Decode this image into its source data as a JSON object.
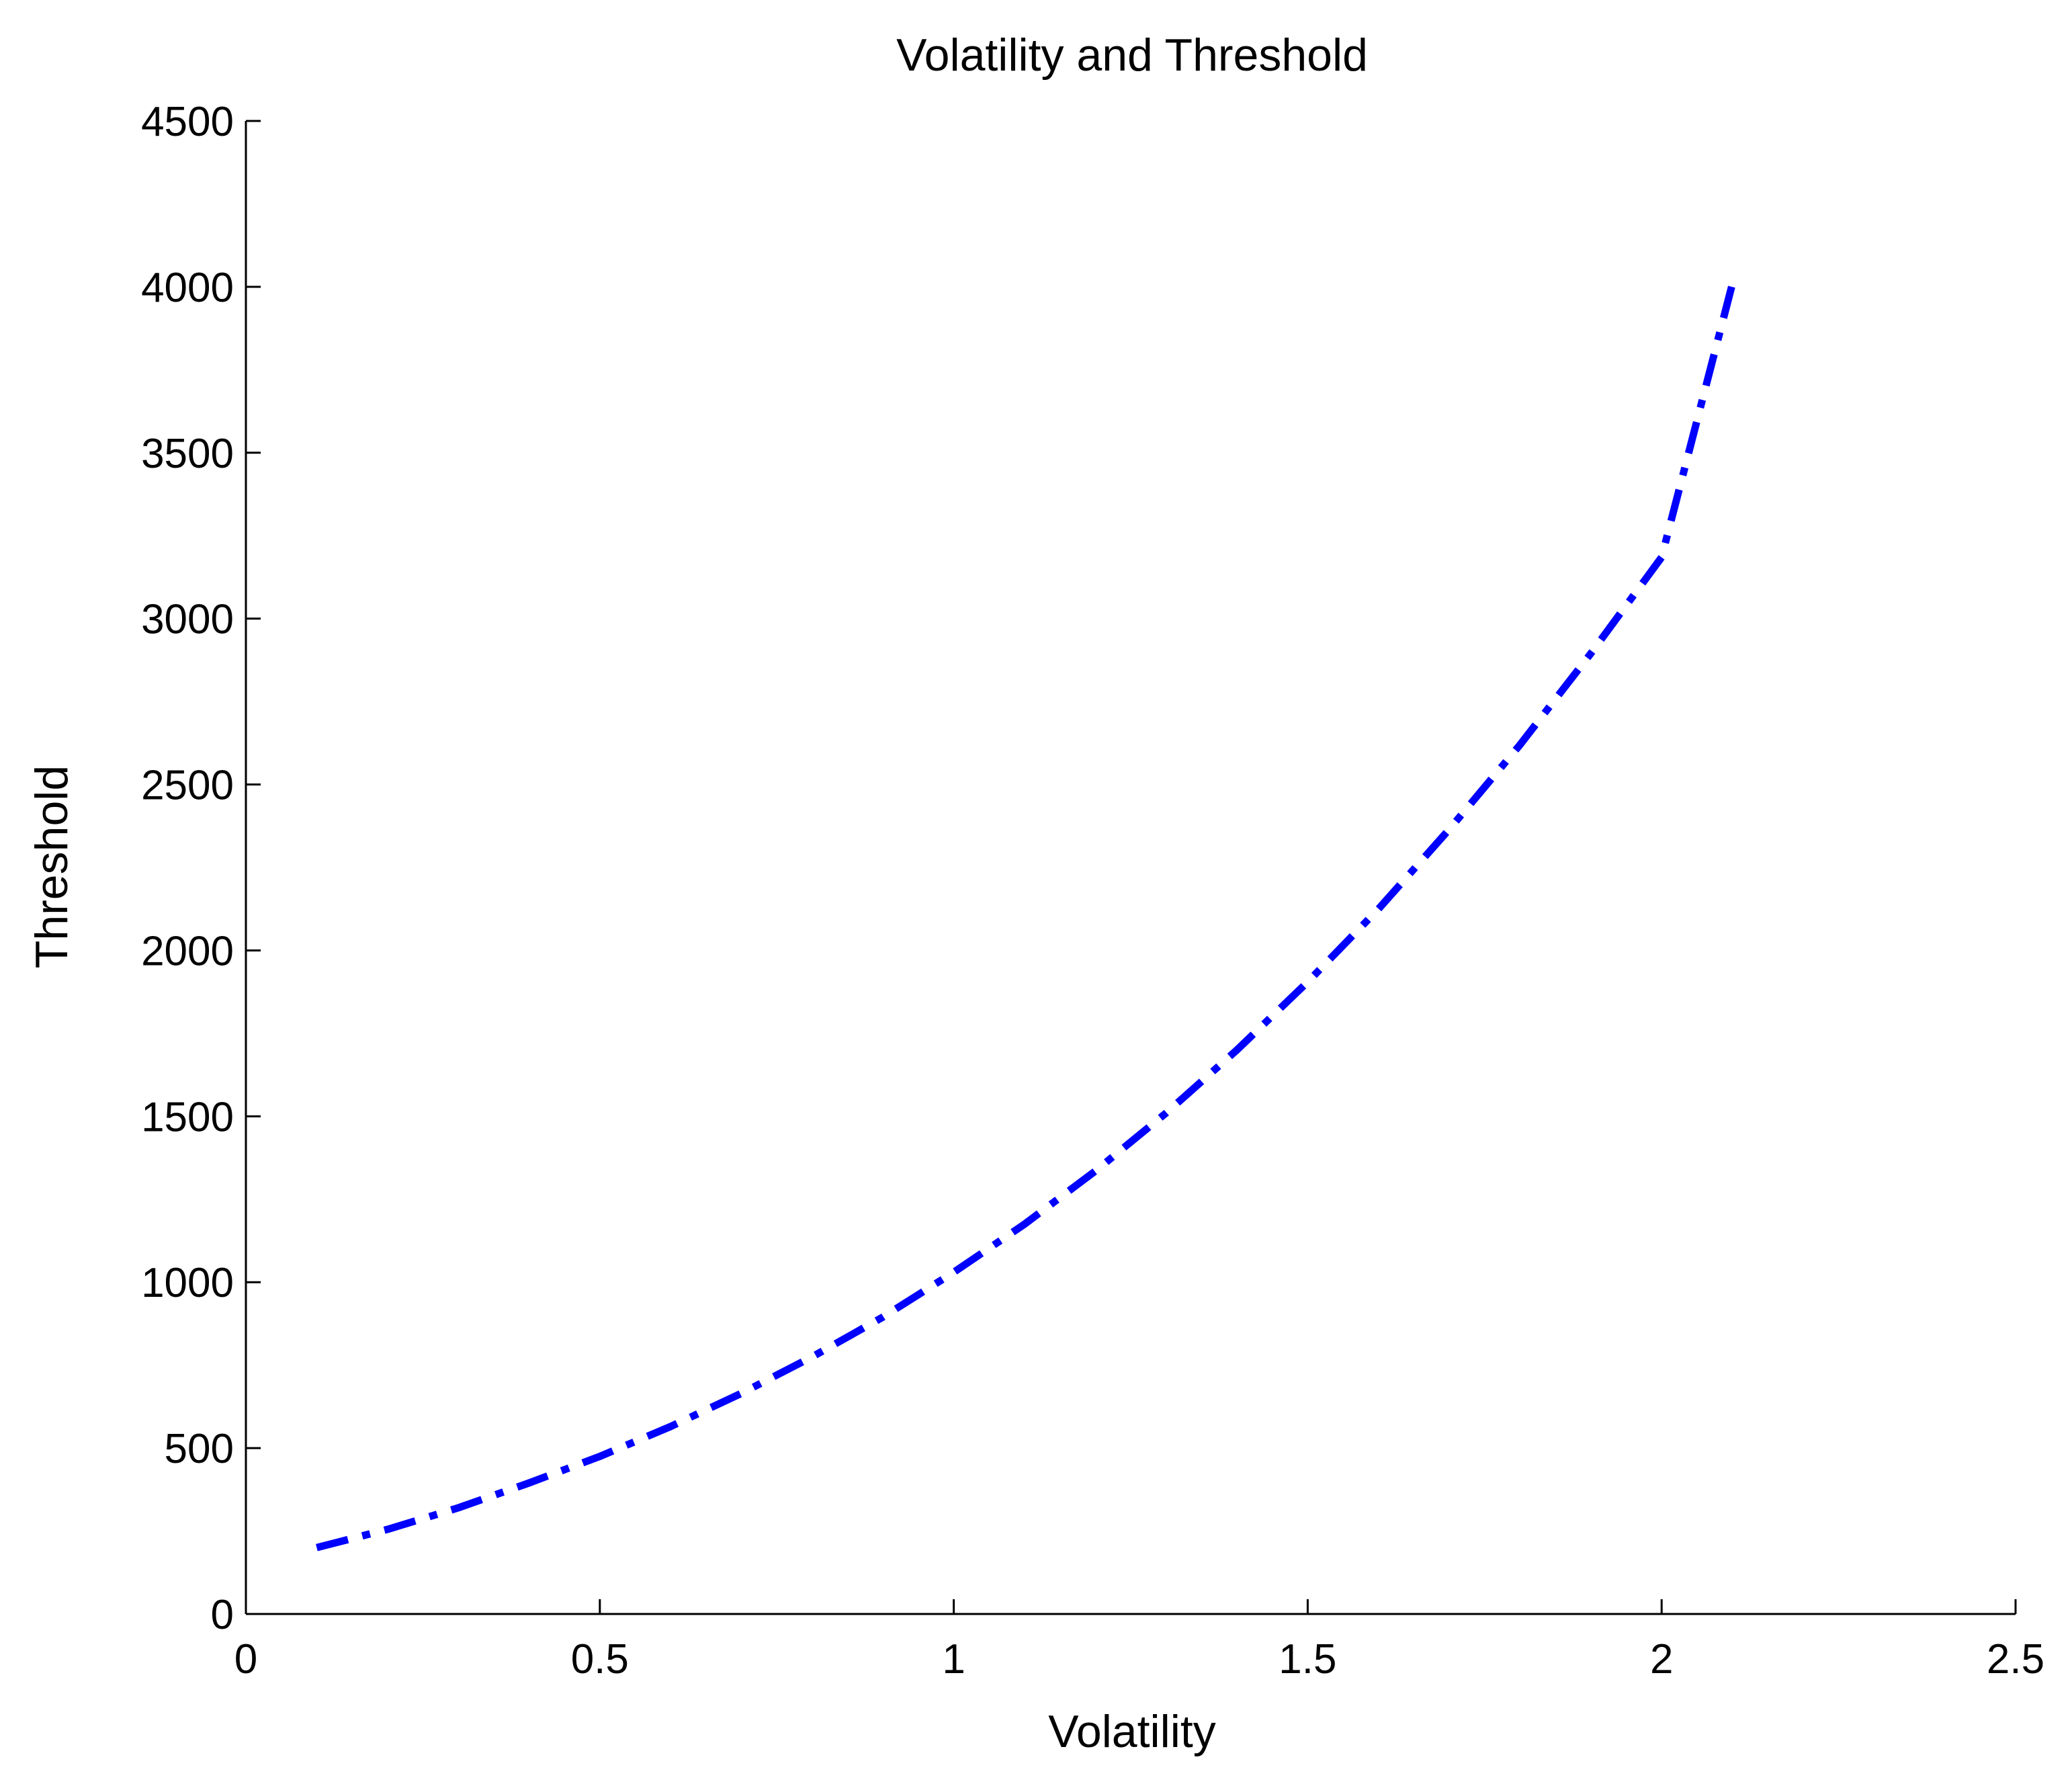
{
  "chart_data": {
    "type": "line",
    "title": "Volatility and Threshold",
    "xlabel": "Volatility",
    "ylabel": "Threshold",
    "xlim": [
      0,
      2.5
    ],
    "ylim": [
      0,
      4500
    ],
    "xticks": [
      0,
      0.5,
      1,
      1.5,
      2,
      2.5
    ],
    "xtick_labels": [
      "0",
      "0.5",
      "1",
      "1.5",
      "2",
      "2.5"
    ],
    "yticks": [
      0,
      500,
      1000,
      1500,
      2000,
      2500,
      3000,
      3500,
      4000,
      4500
    ],
    "ytick_labels": [
      "0",
      "500",
      "1000",
      "1500",
      "2000",
      "2500",
      "3000",
      "3500",
      "4000",
      "4500"
    ],
    "grid": false,
    "legend": "none",
    "series": [
      {
        "color": "#0000ff",
        "line_style": "dash-dot",
        "x": [
          0.1,
          0.2,
          0.3,
          0.4,
          0.5,
          0.6,
          0.7,
          0.8,
          0.9,
          1.0,
          1.1,
          1.2,
          1.3,
          1.4,
          1.5,
          1.6,
          1.7,
          1.8,
          1.9,
          2.0,
          2.1
        ],
        "y": [
          200,
          255,
          320,
          395,
          475,
          565,
          665,
          775,
          895,
          1030,
          1175,
          1335,
          1510,
          1700,
          1905,
          2125,
          2365,
          2620,
          2895,
          3185,
          4010
        ]
      }
    ]
  }
}
